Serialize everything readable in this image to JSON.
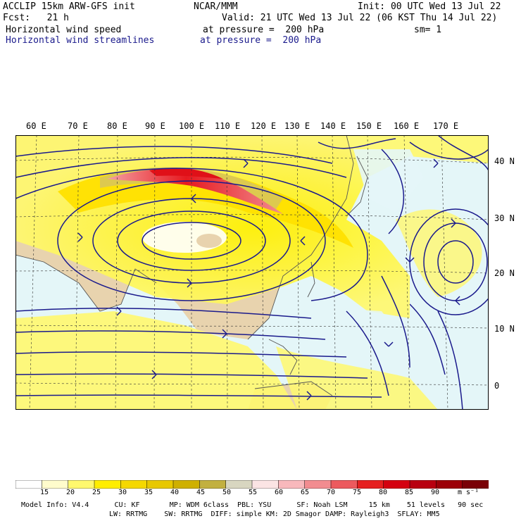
{
  "header": {
    "line1_left": "ACCLIP 15km ARW-GFS init",
    "line1_mid": "NCAR/MMM",
    "line1_right": "Init: 00 UTC Wed 13 Jul 22",
    "line2_left": "Fcst:   21 h",
    "line2_right": "Valid: 21 UTC Wed 13 Jul 22 (06 KST Thu 14 Jul 22)",
    "line3_left": "Horizontal wind speed",
    "line3_mid": "at pressure =  200 hPa",
    "line3_right": "sm= 1",
    "line4_left": "Horizontal wind streamlines",
    "line4_mid": "at pressure =  200 hPa"
  },
  "map": {
    "lon_labels": [
      "60 E",
      "70 E",
      "80 E",
      "90 E",
      "100 E",
      "110 E",
      "120 E",
      "130 E",
      "140 E",
      "150 E",
      "160 E",
      "170 E"
    ],
    "lat_labels": [
      "40 N",
      "30 N",
      "20 N",
      "10 N",
      "0"
    ],
    "streamline_color": "#1a1a8c",
    "ocean_color": "#e4f6f8",
    "land_color": "#e8d3ae"
  },
  "colorbar": {
    "ticks": [
      "15",
      "20",
      "25",
      "30",
      "35",
      "40",
      "45",
      "50",
      "55",
      "60",
      "65",
      "70",
      "75",
      "80",
      "85",
      "90"
    ],
    "unit": "m s⁻¹",
    "colors": [
      "#ffffff",
      "#fffccc",
      "#fff86e",
      "#ffee00",
      "#f5d800",
      "#e8c800",
      "#cfb000",
      "#c2b040",
      "#d8d6c0",
      "#fbe4e4",
      "#f8b8bc",
      "#f28c90",
      "#ec5a5e",
      "#e62020",
      "#d40010",
      "#b80010",
      "#9c0008",
      "#7a0006"
    ]
  },
  "footer": {
    "line1": "Model Info: V4.4      CU: KF       MP: WDM 6class  PBL: YSU      SF: Noah LSM     15 km    51 levels   90 sec",
    "line2": "LW: RRTMG    SW: RRTMG  DIFF: simple KM: 2D Smagor DAMP: Rayleigh3  SFLAY: MM5"
  }
}
